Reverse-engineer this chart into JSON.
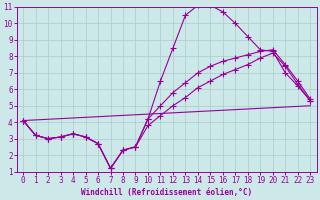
{
  "xlabel": "Windchill (Refroidissement éolien,°C)",
  "bg_color": "#cce8e8",
  "grid_color": "#aacccc",
  "line_color": "#990099",
  "xlim": [
    -0.5,
    23.5
  ],
  "ylim": [
    1,
    11
  ],
  "xticks": [
    0,
    1,
    2,
    3,
    4,
    5,
    6,
    7,
    8,
    9,
    10,
    11,
    12,
    13,
    14,
    15,
    16,
    17,
    18,
    19,
    20,
    21,
    22,
    23
  ],
  "yticks": [
    1,
    2,
    3,
    4,
    5,
    6,
    7,
    8,
    9,
    10,
    11
  ],
  "series": [
    {
      "x": [
        0,
        1,
        2,
        3,
        4,
        5,
        6,
        7,
        8,
        9,
        10,
        11,
        12,
        13,
        14,
        15,
        16,
        17,
        18,
        19,
        20,
        21,
        22,
        23
      ],
      "y": [
        4.1,
        3.2,
        3.0,
        3.1,
        3.3,
        3.1,
        2.7,
        1.2,
        2.3,
        2.5,
        4.2,
        6.5,
        8.5,
        10.5,
        11.1,
        11.1,
        10.7,
        10.0,
        9.2,
        8.4,
        8.3,
        7.0,
        6.2,
        5.3
      ]
    },
    {
      "x": [
        0,
        1,
        2,
        3,
        4,
        5,
        6,
        7,
        8,
        9,
        10,
        11,
        12,
        13,
        14,
        15,
        16,
        17,
        18,
        19,
        20,
        21,
        22,
        23
      ],
      "y": [
        4.1,
        3.2,
        3.0,
        3.1,
        3.3,
        3.1,
        2.7,
        1.2,
        2.3,
        2.5,
        4.2,
        5.0,
        5.8,
        6.4,
        7.0,
        7.4,
        7.7,
        7.9,
        8.1,
        8.3,
        8.4,
        7.5,
        6.5,
        5.4
      ]
    },
    {
      "x": [
        0,
        1,
        2,
        3,
        4,
        5,
        6,
        7,
        8,
        9,
        10,
        11,
        12,
        13,
        14,
        15,
        16,
        17,
        18,
        19,
        20,
        21,
        22,
        23
      ],
      "y": [
        4.1,
        3.2,
        3.0,
        3.1,
        3.3,
        3.1,
        2.7,
        1.2,
        2.3,
        2.5,
        3.8,
        4.4,
        5.0,
        5.5,
        6.1,
        6.5,
        6.9,
        7.2,
        7.5,
        7.9,
        8.2,
        7.4,
        6.3,
        5.3
      ]
    },
    {
      "x": [
        0,
        23
      ],
      "y": [
        4.1,
        5.0
      ]
    }
  ],
  "marker": "+",
  "markersize": 4,
  "linewidth": 0.8,
  "tick_fontsize": 5.5,
  "xlabel_fontsize": 5.5
}
